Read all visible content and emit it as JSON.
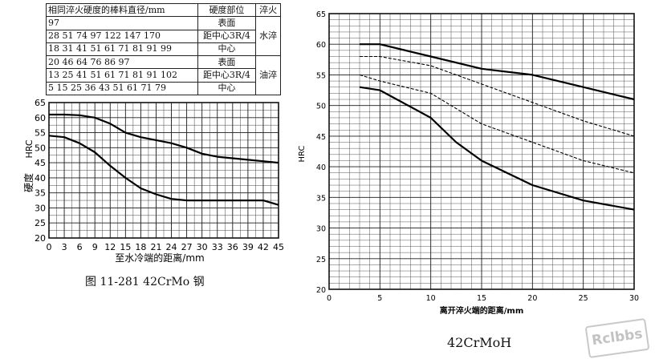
{
  "left_table": {
    "header": [
      "相同淬火硬度的棒料直径/mm",
      "硬度部位",
      "淬火"
    ],
    "rows": [
      {
        "values": "97",
        "position": "表面",
        "quench": ""
      },
      {
        "values": "28  51  74  97  122 147 170",
        "position": "距中心3R/4",
        "quench": "水淬"
      },
      {
        "values": "18  31  41  51  61  71  81  91  99",
        "position": "中心",
        "quench": ""
      },
      {
        "values": "20  46  64  76  86  97",
        "position": "表面",
        "quench": ""
      },
      {
        "values": "13  25  41  51  61  71  81  91 102",
        "position": "距中心3R/4",
        "quench": "油淬"
      },
      {
        "values": "5   15  25  36  43  51  61  71  79",
        "position": "中心",
        "quench": ""
      }
    ]
  },
  "left_caption": "图 11-281    42CrMo 钢",
  "right_caption": "42CrMoH",
  "watermark": "Rclbbs",
  "chart_data": [
    {
      "type": "line",
      "title": "",
      "xlabel": "至水冷端的距离/mm",
      "ylabel_parts": [
        "硬度",
        "HRC"
      ],
      "xlim": [
        0,
        45
      ],
      "ylim": [
        20,
        65
      ],
      "xticks": [
        0,
        3,
        6,
        9,
        12,
        15,
        18,
        21,
        24,
        27,
        30,
        33,
        36,
        39,
        42,
        45
      ],
      "yticks": [
        20,
        25,
        30,
        35,
        40,
        45,
        50,
        55,
        60,
        65
      ],
      "grid": true,
      "series": [
        {
          "x": [
            0,
            3,
            6,
            9,
            12,
            15,
            18,
            21,
            24,
            27,
            30,
            33,
            36,
            39,
            42,
            45
          ],
          "y": [
            61,
            61,
            60.8,
            60,
            58,
            55,
            53.5,
            52.5,
            51.5,
            50,
            48,
            47,
            46.5,
            46,
            45.5,
            45
          ]
        },
        {
          "x": [
            0,
            3,
            6,
            9,
            12,
            15,
            18,
            21,
            24,
            27,
            30,
            33,
            36,
            39,
            42,
            45
          ],
          "y": [
            54,
            53.5,
            51.5,
            48.5,
            44,
            40,
            36.5,
            34.5,
            33,
            32.5,
            32.5,
            32.5,
            32.5,
            32.5,
            32.5,
            31
          ]
        }
      ]
    },
    {
      "type": "line",
      "title": "",
      "xlabel": "离开淬火端的距离/mm",
      "ylabel": "HRC",
      "xlim": [
        0,
        30
      ],
      "ylim": [
        20,
        65
      ],
      "xticks": [
        0,
        5,
        10,
        15,
        20,
        25,
        30
      ],
      "yticks": [
        20,
        25,
        30,
        35,
        40,
        45,
        50,
        55,
        60,
        65
      ],
      "grid": true,
      "series": [
        {
          "style": "solid",
          "x": [
            3,
            5,
            10,
            15,
            20,
            25,
            30
          ],
          "y": [
            60,
            60,
            58,
            56,
            55,
            53,
            51
          ]
        },
        {
          "style": "dashed",
          "x": [
            3,
            5,
            10,
            15,
            20,
            25,
            30
          ],
          "y": [
            58,
            58,
            56.5,
            53.5,
            50.5,
            47.5,
            45
          ]
        },
        {
          "style": "dashed",
          "x": [
            3,
            5,
            10,
            15,
            20,
            25,
            30
          ],
          "y": [
            55,
            54,
            52,
            47,
            44,
            41,
            39
          ]
        },
        {
          "style": "solid",
          "x": [
            3,
            5,
            10,
            12.5,
            15,
            20,
            25,
            30
          ],
          "y": [
            53,
            52.5,
            48,
            44,
            41,
            37,
            34.5,
            33
          ]
        }
      ]
    }
  ]
}
